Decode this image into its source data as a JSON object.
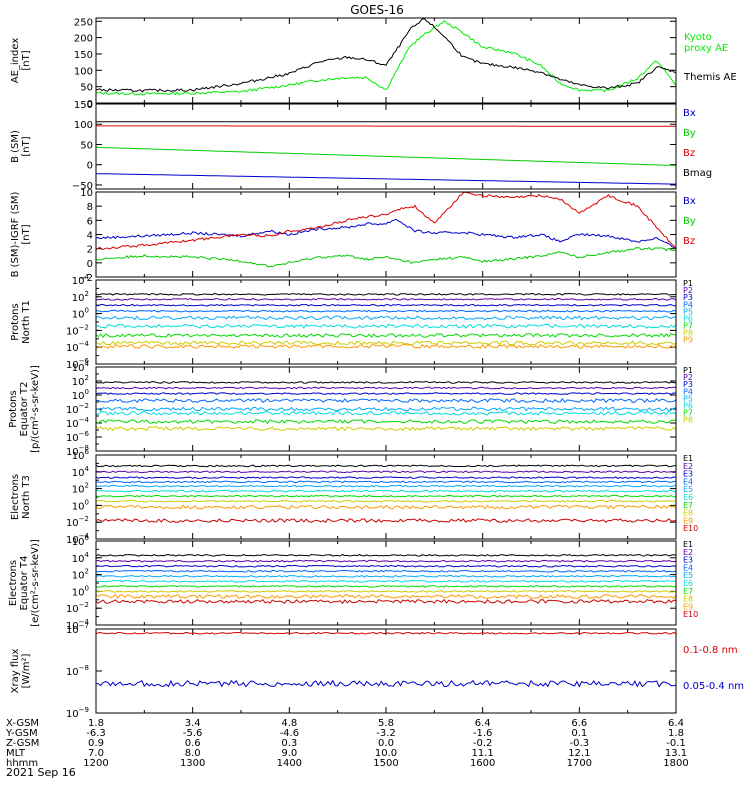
{
  "title": "GOES-16",
  "date": "2021 Sep 16",
  "time_axis": {
    "hhmm": [
      "1200",
      "1300",
      "1400",
      "1500",
      "1600",
      "1700",
      "1800"
    ],
    "rows": [
      {
        "label": "X-GSM",
        "values": [
          "1.8",
          "3.4",
          "4.8",
          "5.8",
          "6.4",
          "6.6",
          "6.4"
        ]
      },
      {
        "label": "Y-GSM",
        "values": [
          "-6.3",
          "-5.6",
          "-4.6",
          "-3.2",
          "-1.6",
          "0.1",
          "1.8"
        ]
      },
      {
        "label": "Z-GSM",
        "values": [
          "0.9",
          "0.6",
          "0.3",
          "0.0",
          "-0.2",
          "-0.3",
          "-0.1"
        ]
      },
      {
        "label": "MLT",
        "values": [
          "7.0",
          "8.0",
          "9.0",
          "10.0",
          "11.1",
          "12.1",
          "13.1"
        ]
      },
      {
        "label": "hhmm",
        "values": [
          "1200",
          "1300",
          "1400",
          "1500",
          "1600",
          "1700",
          "1800"
        ]
      }
    ]
  },
  "chart_data": [
    {
      "type": "line",
      "ylabel": "AE_index\n[nT]",
      "ylim": [
        0,
        260
      ],
      "yticks": [
        {
          "v": 0,
          "l": "0"
        },
        {
          "v": 50,
          "l": "50"
        },
        {
          "v": 100,
          "l": "100"
        },
        {
          "v": 150,
          "l": "150"
        },
        {
          "v": 200,
          "l": "200"
        },
        {
          "v": 250,
          "l": "250"
        }
      ],
      "x_hours": [
        12.0,
        12.5,
        13.0,
        13.5,
        14.0,
        14.3,
        14.6,
        14.8,
        15.0,
        15.15,
        15.25,
        15.4,
        15.6,
        15.8,
        16.0,
        16.3,
        16.6,
        16.8,
        17.0,
        17.3,
        17.6,
        17.8,
        18.0
      ],
      "series": [
        {
          "name": "Kyoto\nproxy AE",
          "color": "#00ee00",
          "values": [
            30,
            28,
            30,
            35,
            55,
            70,
            78,
            78,
            40,
            120,
            175,
            210,
            250,
            215,
            170,
            155,
            115,
            60,
            40,
            38,
            75,
            130,
            55
          ]
        },
        {
          "name": "Themis AE",
          "color": "#000000",
          "values": [
            40,
            38,
            40,
            60,
            90,
            125,
            140,
            132,
            115,
            180,
            225,
            258,
            205,
            140,
            120,
            110,
            95,
            72,
            55,
            45,
            60,
            110,
            95
          ]
        }
      ]
    },
    {
      "type": "line",
      "ylabel": "B (SM)\n[nT]",
      "ylim": [
        -60,
        150
      ],
      "yticks": [
        {
          "v": -50,
          "l": "-50"
        },
        {
          "v": 0,
          "l": "0"
        },
        {
          "v": 50,
          "l": "50"
        },
        {
          "v": 100,
          "l": "100"
        },
        {
          "v": 150,
          "l": "150"
        }
      ],
      "x_hours": [
        12.0,
        18.0
      ],
      "series": [
        {
          "name": "Bx",
          "color": "#0000cc",
          "values": [
            -22,
            -48
          ]
        },
        {
          "name": "By",
          "color": "#00cc00",
          "values": [
            43,
            -2
          ]
        },
        {
          "name": "Bz",
          "color": "#dd0000",
          "values": [
            96,
            95
          ]
        },
        {
          "name": "Bmag",
          "color": "#000000",
          "values": [
            106,
            106
          ]
        }
      ]
    },
    {
      "type": "line",
      "ylabel": "B (SM)-IGRF (SM)\n[nT]",
      "ylim": [
        -2,
        10
      ],
      "yticks": [
        {
          "v": -2,
          "l": "-2"
        },
        {
          "v": 0,
          "l": "0"
        },
        {
          "v": 2,
          "l": "2"
        },
        {
          "v": 4,
          "l": "4"
        },
        {
          "v": 6,
          "l": "6"
        },
        {
          "v": 8,
          "l": "8"
        },
        {
          "v": 10,
          "l": "10"
        }
      ],
      "x_hours": [
        12.0,
        12.5,
        13.0,
        13.5,
        13.8,
        14.0,
        14.3,
        14.6,
        14.8,
        15.0,
        15.1,
        15.3,
        15.5,
        15.8,
        16.0,
        16.3,
        16.6,
        16.8,
        17.0,
        17.3,
        17.6,
        17.8,
        18.0
      ],
      "series": [
        {
          "name": "Bx",
          "color": "#0000cc",
          "values": [
            3.5,
            3.8,
            4.2,
            3.8,
            4.5,
            4.0,
            4.8,
            5.0,
            5.5,
            5.5,
            6.2,
            4.5,
            4.2,
            4.3,
            4.0,
            3.6,
            4.0,
            3.0,
            4.0,
            3.8,
            3.0,
            3.5,
            2.0
          ]
        },
        {
          "name": "By",
          "color": "#00cc00",
          "values": [
            0.5,
            1.0,
            0.8,
            0.3,
            -0.5,
            0.0,
            0.8,
            1.0,
            0.5,
            0.8,
            0.5,
            0.0,
            0.5,
            0.8,
            0.2,
            0.5,
            1.0,
            1.5,
            0.8,
            1.5,
            2.0,
            2.0,
            1.8
          ]
        },
        {
          "name": "Bz",
          "color": "#dd0000",
          "values": [
            2.0,
            2.5,
            3.2,
            4.0,
            3.8,
            4.5,
            5.0,
            6.0,
            6.5,
            6.8,
            7.5,
            8.0,
            5.5,
            10.0,
            9.5,
            9.2,
            9.5,
            9.0,
            7.0,
            9.5,
            8.0,
            5.0,
            2.0
          ]
        }
      ]
    },
    {
      "type": "line",
      "ylabel": "Protons\nNorth T1",
      "log": true,
      "ylim_exp": [
        -6,
        4
      ],
      "yticks": [
        {
          "e": -6
        },
        {
          "e": -4
        },
        {
          "e": -2
        },
        {
          "e": 0
        },
        {
          "e": 2
        },
        {
          "e": 4
        }
      ],
      "series": [
        {
          "name": "P1",
          "color": "#000000",
          "log_value": 2.3
        },
        {
          "name": "P2",
          "color": "#5a00aa",
          "log_value": 1.7
        },
        {
          "name": "P3",
          "color": "#0000cc",
          "log_value": 1.0
        },
        {
          "name": "P4",
          "color": "#0066ff",
          "log_value": 0.3
        },
        {
          "name": "P5",
          "color": "#00aaff",
          "log_value": -0.5
        },
        {
          "name": "P6",
          "color": "#00dddd",
          "log_value": -1.5
        },
        {
          "name": "P7",
          "color": "#00dd00",
          "log_value": -2.6
        },
        {
          "name": "P8",
          "color": "#cccc00",
          "log_value": -3.5
        },
        {
          "name": "P9",
          "color": "#ff9900",
          "log_value": -3.9
        },
        {
          "name": "P10",
          "color": "#ff3300",
          "log_value": null
        },
        {
          "name": "P11",
          "color": "#cc0000",
          "log_value": null
        }
      ]
    },
    {
      "type": "line",
      "ylabel": "Protons\nEquator T2\n[p/(cm²-s-sr-keV)]",
      "log": true,
      "ylim_exp": [
        -8,
        4
      ],
      "yticks": [
        {
          "e": -8
        },
        {
          "e": -6
        },
        {
          "e": -4
        },
        {
          "e": -2
        },
        {
          "e": 0
        },
        {
          "e": 2
        },
        {
          "e": 4
        }
      ],
      "series": [
        {
          "name": "P1",
          "color": "#000000",
          "log_value": 1.8
        },
        {
          "name": "P2",
          "color": "#5a00aa",
          "log_value": 1.0
        },
        {
          "name": "P3",
          "color": "#0000cc",
          "log_value": 0.2
        },
        {
          "name": "P4",
          "color": "#0066ff",
          "log_value": -0.8
        },
        {
          "name": "P5",
          "color": "#00aaff",
          "log_value": -2.0
        },
        {
          "name": "P6",
          "color": "#00dddd",
          "log_value": -2.6
        },
        {
          "name": "P7",
          "color": "#00dd00",
          "log_value": -3.8
        },
        {
          "name": "P8",
          "color": "#cccc00",
          "log_value": -4.8
        },
        {
          "name": "P9",
          "color": "#ff9900",
          "log_value": null
        },
        {
          "name": "P10",
          "color": "#ff3300",
          "log_value": null
        },
        {
          "name": "P11",
          "color": "#cc0000",
          "log_value": null
        }
      ]
    },
    {
      "type": "line",
      "ylabel": "Electrons\nNorth T3",
      "log": true,
      "ylim_exp": [
        -4,
        6
      ],
      "yticks": [
        {
          "e": -4
        },
        {
          "e": -2
        },
        {
          "e": 0
        },
        {
          "e": 2
        },
        {
          "e": 4
        },
        {
          "e": 6
        }
      ],
      "series": [
        {
          "name": "E1",
          "color": "#000000",
          "log_value": 4.7
        },
        {
          "name": "E2",
          "color": "#5a00aa",
          "log_value": 4.0
        },
        {
          "name": "E3",
          "color": "#0000cc",
          "log_value": 3.3
        },
        {
          "name": "E4",
          "color": "#0066ff",
          "log_value": 2.8
        },
        {
          "name": "E5",
          "color": "#00aaff",
          "log_value": 2.3
        },
        {
          "name": "E6",
          "color": "#00dddd",
          "log_value": 1.7
        },
        {
          "name": "E7",
          "color": "#00dd00",
          "log_value": 1.1
        },
        {
          "name": "E8",
          "color": "#cccc00",
          "log_value": 0.5
        },
        {
          "name": "E9",
          "color": "#ff9900",
          "log_value": -0.2
        },
        {
          "name": "E10",
          "color": "#cc0000",
          "log_value": -1.8
        }
      ]
    },
    {
      "type": "line",
      "ylabel": "Electrons\nEquator T4\n[e/(cm²-s-sr-keV)]",
      "log": true,
      "ylim_exp": [
        -4,
        6
      ],
      "yticks": [
        {
          "e": -4
        },
        {
          "e": -2
        },
        {
          "e": 0
        },
        {
          "e": 2
        },
        {
          "e": 4
        },
        {
          "e": 6
        }
      ],
      "series": [
        {
          "name": "E1",
          "color": "#000000",
          "log_value": 4.3
        },
        {
          "name": "E2",
          "color": "#5a00aa",
          "log_value": 3.6
        },
        {
          "name": "E3",
          "color": "#0000cc",
          "log_value": 3.0
        },
        {
          "name": "E4",
          "color": "#0066ff",
          "log_value": 2.4
        },
        {
          "name": "E5",
          "color": "#00aaff",
          "log_value": 1.8
        },
        {
          "name": "E6",
          "color": "#00dddd",
          "log_value": 1.2
        },
        {
          "name": "E7",
          "color": "#00dd00",
          "log_value": 0.6
        },
        {
          "name": "E8",
          "color": "#cccc00",
          "log_value": 0.0
        },
        {
          "name": "E9",
          "color": "#ff9900",
          "log_value": -0.6
        },
        {
          "name": "E10",
          "color": "#cc0000",
          "log_value": -1.2
        }
      ]
    },
    {
      "type": "line",
      "ylabel": "Xray flux\n[W/m²]",
      "log": true,
      "ylim_exp": [
        -9,
        -7
      ],
      "yticks": [
        {
          "e": -9
        },
        {
          "e": -8
        },
        {
          "e": -7
        }
      ],
      "series": [
        {
          "name": "0.1-0.8 nm",
          "color": "#dd0000",
          "log_value": -7.1
        },
        {
          "name": "0.05-0.4 nm",
          "color": "#0000cc",
          "log_value": -8.3
        }
      ]
    }
  ]
}
